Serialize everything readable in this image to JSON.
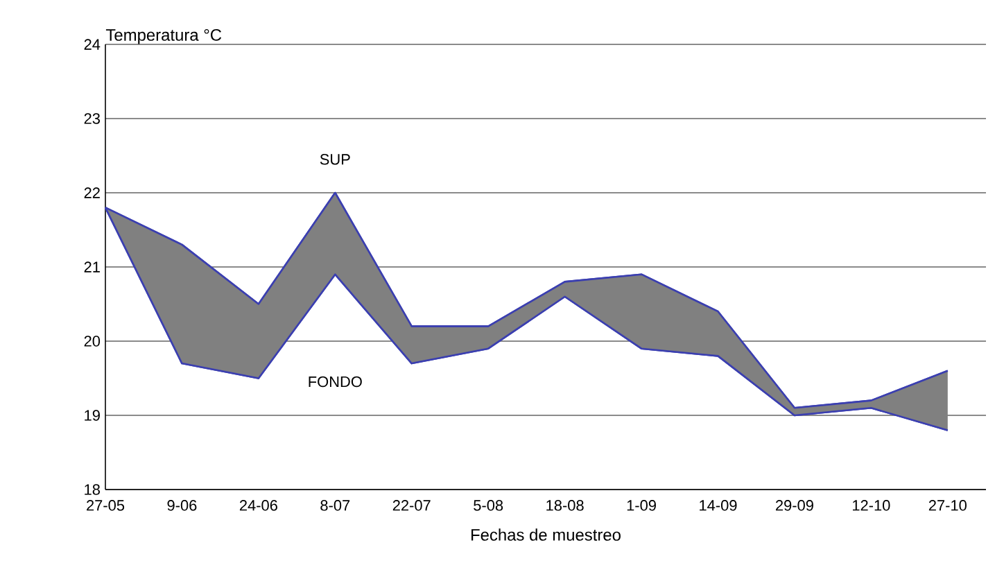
{
  "chart_data": {
    "type": "line",
    "ylabel": "Temperatura   °C",
    "xlabel": "Fechas de muestreo",
    "categories": [
      "27-05",
      "9-06",
      "24-06",
      "8-07",
      "22-07",
      "5-08",
      "18-08",
      "1-09",
      "14-09",
      "29-09",
      "12-10",
      "27-10"
    ],
    "ylim": [
      18,
      24
    ],
    "yticks": [
      18,
      19,
      20,
      21,
      22,
      23,
      24
    ],
    "grid": "y",
    "series": [
      {
        "name": "SUP",
        "type": "area",
        "color": "#3b3fb0",
        "values": [
          21.8,
          21.3,
          20.5,
          22.0,
          20.2,
          20.2,
          20.8,
          20.9,
          20.4,
          19.1,
          19.2,
          19.6
        ]
      },
      {
        "name": "FONDO",
        "color": "#3b3fb0",
        "values": [
          21.8,
          19.7,
          19.5,
          20.9,
          19.7,
          19.9,
          20.6,
          19.9,
          19.8,
          19.0,
          19.1,
          18.8
        ]
      }
    ]
  }
}
